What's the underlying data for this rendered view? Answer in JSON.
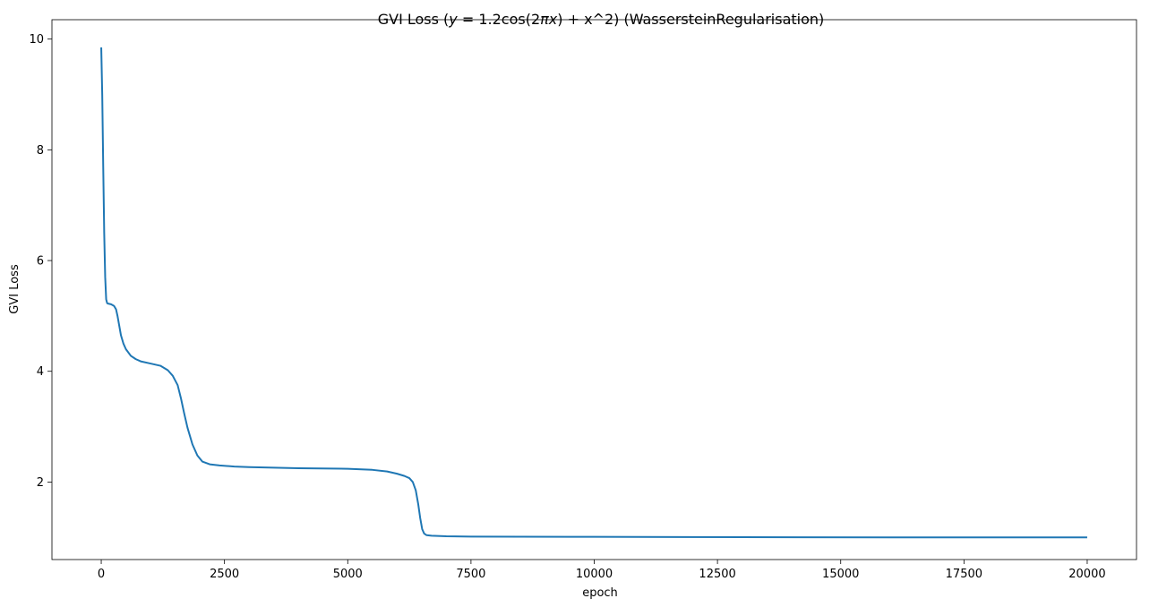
{
  "chart_data": {
    "type": "line",
    "title_parts": [
      {
        "text": "GVI Loss (",
        "italic": false
      },
      {
        "text": "y",
        "italic": true
      },
      {
        "text": " = 1.2cos(2",
        "italic": false
      },
      {
        "text": "πx",
        "italic": true
      },
      {
        "text": ") + x^2) (WassersteinRegularisation)",
        "italic": false
      }
    ],
    "xlabel": "epoch",
    "ylabel": "GVI Loss",
    "xlim": [
      -1000,
      21000
    ],
    "ylim": [
      0.6,
      10.35
    ],
    "xticks": [
      0,
      2500,
      5000,
      7500,
      10000,
      12500,
      15000,
      17500,
      20000
    ],
    "yticks": [
      2,
      4,
      6,
      8,
      10
    ],
    "grid": false,
    "color": "#1f77b4",
    "series": [
      {
        "x": [
          0,
          20,
          40,
          60,
          80,
          100,
          120,
          150,
          200,
          260,
          300,
          330,
          360,
          400,
          450,
          500,
          600,
          700,
          800,
          1000,
          1200,
          1350,
          1450,
          1550,
          1620,
          1680,
          1750,
          1850,
          1950,
          2050,
          2200,
          2400,
          2700,
          3000,
          4000,
          5000,
          5500,
          5800,
          6000,
          6150,
          6250,
          6320,
          6380,
          6430,
          6470,
          6510,
          6550,
          6600,
          6700,
          7000,
          7500,
          10000,
          13000,
          16000,
          20000
        ],
        "y": [
          9.85,
          9.0,
          7.7,
          6.5,
          5.7,
          5.3,
          5.23,
          5.22,
          5.21,
          5.18,
          5.12,
          5.0,
          4.85,
          4.65,
          4.5,
          4.4,
          4.28,
          4.22,
          4.18,
          4.14,
          4.1,
          4.02,
          3.92,
          3.75,
          3.5,
          3.25,
          2.98,
          2.68,
          2.48,
          2.37,
          2.32,
          2.3,
          2.28,
          2.27,
          2.25,
          2.24,
          2.22,
          2.19,
          2.15,
          2.11,
          2.07,
          2.0,
          1.85,
          1.6,
          1.35,
          1.15,
          1.07,
          1.04,
          1.03,
          1.02,
          1.015,
          1.01,
          1.005,
          1.0,
          1.0
        ]
      }
    ]
  }
}
